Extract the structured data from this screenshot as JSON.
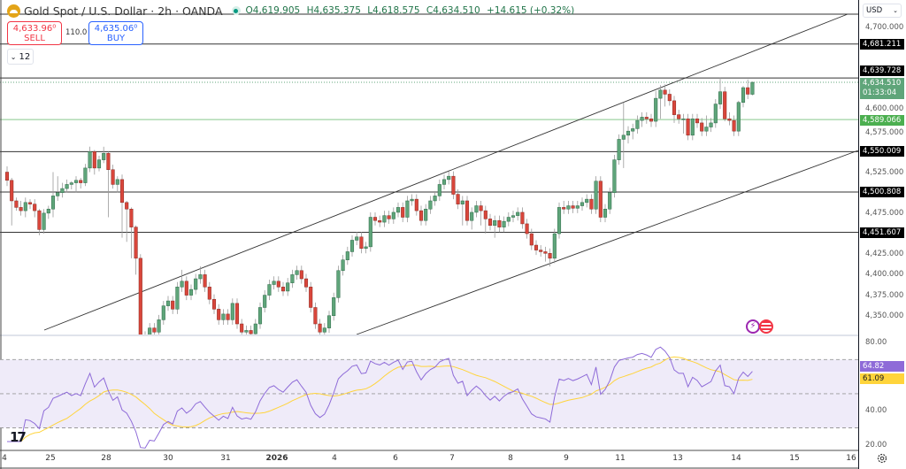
{
  "header": {
    "title": "Gold Spot / U.S. Dollar · 2h · OANDA",
    "open": "O4,619.905",
    "high": "H4,635.375",
    "low": "L4,618.575",
    "close": "C4,634.510",
    "change": "+14.615 (+0.32%)",
    "market_status_color": "#089981"
  },
  "trade": {
    "sell_price": "4,633.96⁰",
    "sell_label": "SELL",
    "spread": "110.0",
    "buy_price": "4,635.06⁰",
    "buy_label": "BUY"
  },
  "indicators_collapse": {
    "label": "12",
    "icon": "chevron-down-icon"
  },
  "price_scale": {
    "currency": "USD",
    "ticks": [
      "4,700.000",
      "4,600.000",
      "4,575.000",
      "4,525.000",
      "4,475.000",
      "4,425.000",
      "4,400.000",
      "4,375.000",
      "4,350.000"
    ],
    "tick_values": [
      4700,
      4600,
      4575,
      4525,
      4475,
      4425,
      4400,
      4375,
      4350
    ],
    "levels": [
      {
        "label": "4,681.211",
        "value": 4681.211
      },
      {
        "label": "4,639.728",
        "value": 4639.728
      },
      {
        "label": "4,550.009",
        "value": 4550.009
      },
      {
        "label": "4,500.808",
        "value": 4500.808
      },
      {
        "label": "4,451.607",
        "value": 4451.607
      }
    ],
    "green_level": {
      "label": "4,589.066",
      "value": 4589.066,
      "color": "#4caf50"
    },
    "current": {
      "price": "4,634.510",
      "countdown": "01:33:04",
      "value": 4634.51
    }
  },
  "rsi_scale": {
    "ticks": [
      "80.00",
      "40.00",
      "20.00"
    ],
    "tick_values": [
      80,
      40,
      20
    ],
    "rsi_label": "64.82",
    "ma_label": "61.09",
    "rsi_color": "#8e6bd8",
    "ma_color": "#ffd43b",
    "bands": [
      70,
      50,
      30
    ]
  },
  "x_axis": {
    "labels": [
      "4",
      "25",
      "28",
      "30",
      "31",
      "2026",
      "4",
      "6",
      "7",
      "8",
      "9",
      "11",
      "13",
      "14",
      "15",
      "16"
    ]
  },
  "colors": {
    "up": "#5fa57a",
    "down": "#d9463b",
    "up_border": "#2d6b48",
    "down_border": "#8a2a22"
  },
  "events": [
    "lightning-event-icon",
    "us-flag-economic-event-icon"
  ],
  "chart_data": {
    "type": "candlestick",
    "symbol": "XAUUSD",
    "interval": "2h",
    "y_range": [
      4327,
      4720
    ],
    "candles": [
      [
        4525,
        4532,
        4508,
        4515
      ],
      [
        4515,
        4518,
        4460,
        4490
      ],
      [
        4490,
        4494,
        4478,
        4482
      ],
      [
        4482,
        4490,
        4472,
        4478
      ],
      [
        4478,
        4494,
        4470,
        4488
      ],
      [
        4488,
        4492,
        4480,
        4486
      ],
      [
        4486,
        4492,
        4470,
        4478
      ],
      [
        4478,
        4480,
        4448,
        4455
      ],
      [
        4455,
        4480,
        4450,
        4475
      ],
      [
        4475,
        4484,
        4468,
        4480
      ],
      [
        4480,
        4525,
        4470,
        4496
      ],
      [
        4496,
        4520,
        4490,
        4500
      ],
      [
        4500,
        4512,
        4494,
        4505
      ],
      [
        4505,
        4516,
        4500,
        4510
      ],
      [
        4510,
        4514,
        4504,
        4512
      ],
      [
        4512,
        4520,
        4500,
        4515
      ],
      [
        4515,
        4518,
        4505,
        4512
      ],
      [
        4512,
        4535,
        4508,
        4530
      ],
      [
        4530,
        4556,
        4525,
        4550
      ],
      [
        4550,
        4552,
        4522,
        4530
      ],
      [
        4530,
        4545,
        4526,
        4540
      ],
      [
        4540,
        4556,
        4536,
        4548
      ],
      [
        4548,
        4550,
        4470,
        4528
      ],
      [
        4528,
        4534,
        4505,
        4510
      ],
      [
        4510,
        4520,
        4500,
        4516
      ],
      [
        4516,
        4522,
        4445,
        4488
      ],
      [
        4488,
        4490,
        4440,
        4480
      ],
      [
        4480,
        4482,
        4420,
        4458
      ],
      [
        4458,
        4460,
        4400,
        4420
      ],
      [
        4420,
        4425,
        4300,
        4325
      ],
      [
        4325,
        4331,
        4314,
        4320
      ],
      [
        4320,
        4341,
        4314,
        4335
      ],
      [
        4335,
        4341,
        4324,
        4330
      ],
      [
        4330,
        4351,
        4324,
        4345
      ],
      [
        4345,
        4368,
        4339,
        4362
      ],
      [
        4362,
        4374,
        4356,
        4368
      ],
      [
        4368,
        4374,
        4352,
        4358
      ],
      [
        4358,
        4391,
        4352,
        4385
      ],
      [
        4385,
        4406,
        4379,
        4392
      ],
      [
        4392,
        4398,
        4369,
        4375
      ],
      [
        4375,
        4388,
        4369,
        4382
      ],
      [
        4382,
        4401,
        4376,
        4395
      ],
      [
        4395,
        4410,
        4389,
        4400
      ],
      [
        4400,
        4406,
        4379,
        4385
      ],
      [
        4385,
        4391,
        4364,
        4370
      ],
      [
        4370,
        4376,
        4352,
        4358
      ],
      [
        4358,
        4364,
        4339,
        4345
      ],
      [
        4345,
        4358,
        4339,
        4352
      ],
      [
        4352,
        4358,
        4339,
        4345
      ],
      [
        4345,
        4371,
        4339,
        4365
      ],
      [
        4365,
        4371,
        4334,
        4340
      ],
      [
        4340,
        4346,
        4324,
        4330
      ],
      [
        4330,
        4338,
        4324,
        4332
      ],
      [
        4332,
        4338,
        4322,
        4328
      ],
      [
        4328,
        4346,
        4322,
        4340
      ],
      [
        4340,
        4366,
        4334,
        4360
      ],
      [
        4360,
        4381,
        4354,
        4375
      ],
      [
        4375,
        4394,
        4369,
        4388
      ],
      [
        4388,
        4398,
        4382,
        4392
      ],
      [
        4392,
        4398,
        4379,
        4385
      ],
      [
        4385,
        4391,
        4374,
        4380
      ],
      [
        4380,
        4396,
        4374,
        4390
      ],
      [
        4390,
        4406,
        4384,
        4400
      ],
      [
        4400,
        4411,
        4394,
        4405
      ],
      [
        4405,
        4411,
        4389,
        4395
      ],
      [
        4395,
        4401,
        4379,
        4385
      ],
      [
        4385,
        4391,
        4354,
        4360
      ],
      [
        4360,
        4366,
        4334,
        4340
      ],
      [
        4340,
        4346,
        4324,
        4330
      ],
      [
        4330,
        4341,
        4324,
        4335
      ],
      [
        4335,
        4356,
        4329,
        4350
      ],
      [
        4350,
        4378,
        4344,
        4372
      ],
      [
        4372,
        4411,
        4366,
        4405
      ],
      [
        4405,
        4424,
        4399,
        4418
      ],
      [
        4418,
        4434,
        4412,
        4428
      ],
      [
        4428,
        4448,
        4422,
        4442
      ],
      [
        4442,
        4452,
        4436,
        4446
      ],
      [
        4446,
        4452,
        4426,
        4432
      ],
      [
        4432,
        4440,
        4426,
        4434
      ],
      [
        4434,
        4476,
        4428,
        4470
      ],
      [
        4470,
        4476,
        4460,
        4466
      ],
      [
        4466,
        4472,
        4458,
        4464
      ],
      [
        4464,
        4478,
        4458,
        4472
      ],
      [
        4472,
        4478,
        4462,
        4468
      ],
      [
        4468,
        4482,
        4462,
        4476
      ],
      [
        4476,
        4488,
        4470,
        4482
      ],
      [
        4482,
        4488,
        4464,
        4470
      ],
      [
        4470,
        4496,
        4464,
        4490
      ],
      [
        4490,
        4498,
        4484,
        4492
      ],
      [
        4492,
        4498,
        4472,
        4478
      ],
      [
        4478,
        4484,
        4460,
        4466
      ],
      [
        4466,
        4486,
        4460,
        4480
      ],
      [
        4480,
        4496,
        4474,
        4490
      ],
      [
        4490,
        4502,
        4484,
        4496
      ],
      [
        4496,
        4516,
        4490,
        4510
      ],
      [
        4510,
        4522,
        4504,
        4516
      ],
      [
        4516,
        4526,
        4510,
        4520
      ],
      [
        4520,
        4526,
        4492,
        4498
      ],
      [
        4498,
        4504,
        4480,
        4486
      ],
      [
        4486,
        4496,
        4460,
        4490
      ],
      [
        4490,
        4496,
        4460,
        4466
      ],
      [
        4466,
        4482,
        4455,
        4476
      ],
      [
        4476,
        4490,
        4470,
        4484
      ],
      [
        4484,
        4490,
        4460,
        4478
      ],
      [
        4478,
        4484,
        4450,
        4468
      ],
      [
        4468,
        4474,
        4454,
        4460
      ],
      [
        4460,
        4472,
        4445,
        4466
      ],
      [
        4466,
        4472,
        4452,
        4458
      ],
      [
        4458,
        4471,
        4452,
        4465
      ],
      [
        4465,
        4476,
        4459,
        4470
      ],
      [
        4470,
        4478,
        4464,
        4472
      ],
      [
        4472,
        4482,
        4466,
        4476
      ],
      [
        4476,
        4482,
        4456,
        4462
      ],
      [
        4462,
        4468,
        4444,
        4450
      ],
      [
        4450,
        4456,
        4430,
        4436
      ],
      [
        4436,
        4442,
        4424,
        4430
      ],
      [
        4430,
        4436,
        4422,
        4428
      ],
      [
        4428,
        4434,
        4416,
        4426
      ],
      [
        4426,
        4432,
        4410,
        4420
      ],
      [
        4420,
        4456,
        4414,
        4450
      ],
      [
        4450,
        4488,
        4444,
        4482
      ],
      [
        4482,
        4490,
        4474,
        4480
      ],
      [
        4480,
        4490,
        4474,
        4484
      ],
      [
        4484,
        4490,
        4475,
        4481
      ],
      [
        4481,
        4490,
        4475,
        4484
      ],
      [
        4484,
        4494,
        4478,
        4488
      ],
      [
        4488,
        4498,
        4482,
        4492
      ],
      [
        4492,
        4498,
        4474,
        4480
      ],
      [
        4480,
        4520,
        4474,
        4514
      ],
      [
        4514,
        4520,
        4464,
        4470
      ],
      [
        4470,
        4486,
        4464,
        4480
      ],
      [
        4480,
        4506,
        4474,
        4500
      ],
      [
        4500,
        4546,
        4494,
        4540
      ],
      [
        4540,
        4571,
        4534,
        4565
      ],
      [
        4565,
        4610,
        4530,
        4570
      ],
      [
        4570,
        4581,
        4560,
        4575
      ],
      [
        4575,
        4584,
        4565,
        4578
      ],
      [
        4578,
        4594,
        4572,
        4588
      ],
      [
        4588,
        4598,
        4580,
        4592
      ],
      [
        4592,
        4598,
        4584,
        4590
      ],
      [
        4590,
        4596,
        4580,
        4587
      ],
      [
        4587,
        4624,
        4580,
        4615
      ],
      [
        4615,
        4631,
        4590,
        4625
      ],
      [
        4625,
        4632,
        4605,
        4620
      ],
      [
        4620,
        4626,
        4606,
        4612
      ],
      [
        4612,
        4618,
        4585,
        4595
      ],
      [
        4595,
        4601,
        4584,
        4590
      ],
      [
        4590,
        4596,
        4572,
        4590
      ],
      [
        4590,
        4596,
        4564,
        4570
      ],
      [
        4570,
        4596,
        4564,
        4590
      ],
      [
        4590,
        4596,
        4579,
        4585
      ],
      [
        4585,
        4591,
        4569,
        4575
      ],
      [
        4575,
        4594,
        4569,
        4580
      ],
      [
        4580,
        4591,
        4574,
        4585
      ],
      [
        4585,
        4614,
        4579,
        4608
      ],
      [
        4608,
        4640,
        4602,
        4623
      ],
      [
        4623,
        4629,
        4587,
        4590
      ],
      [
        4590,
        4598,
        4582,
        4588
      ],
      [
        4588,
        4594,
        4569,
        4575
      ],
      [
        4575,
        4612,
        4569,
        4610
      ],
      [
        4610,
        4630,
        4604,
        4628
      ],
      [
        4628,
        4638,
        4614,
        4620
      ],
      [
        4619.905,
        4635.375,
        4618.575,
        4634.51
      ]
    ],
    "rsi_period": 14,
    "rsi_ma_period": 14,
    "rsi_range": [
      15,
      88
    ]
  }
}
